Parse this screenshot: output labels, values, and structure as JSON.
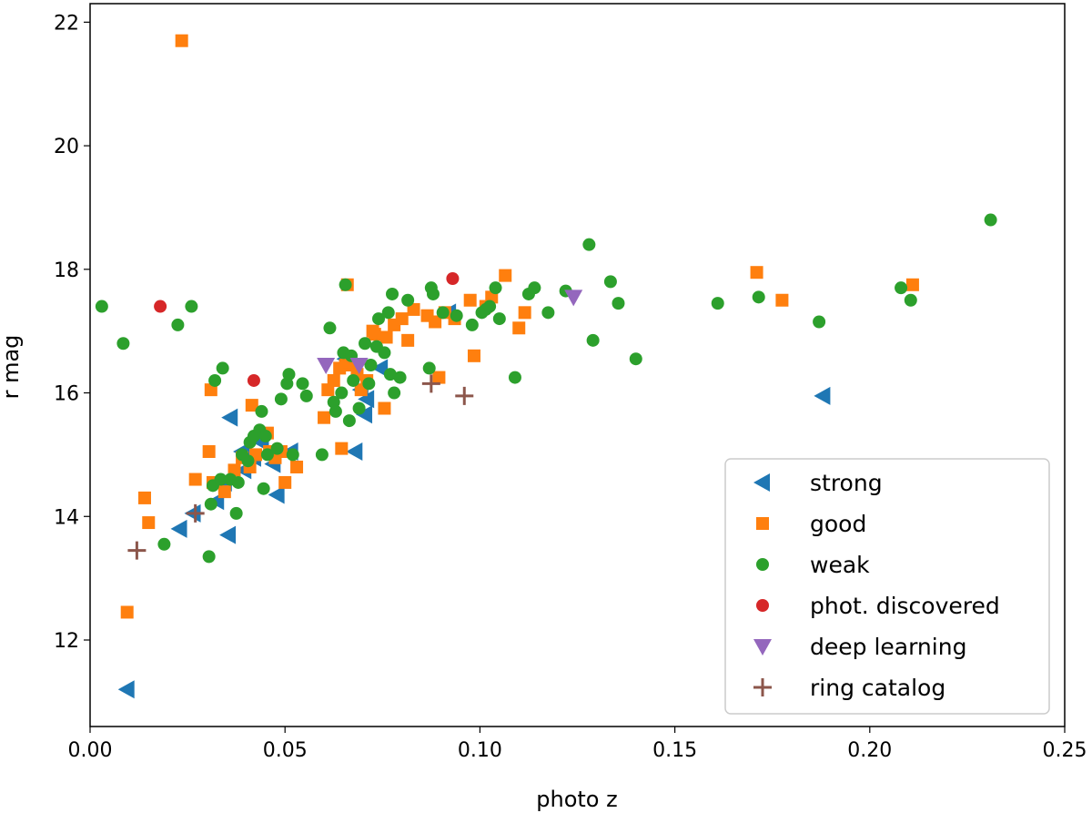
{
  "chart_data": {
    "type": "scatter",
    "title": "",
    "xlabel": "photo z",
    "ylabel": "r mag",
    "xlim": [
      0.0,
      0.25
    ],
    "ylim": [
      10.6,
      22.3
    ],
    "xticks": [
      0.0,
      0.05,
      0.1,
      0.15,
      0.2,
      0.25
    ],
    "xtick_labels": [
      "0.00",
      "0.05",
      "0.10",
      "0.15",
      "0.20",
      "0.25"
    ],
    "yticks": [
      12,
      14,
      16,
      18,
      20,
      22
    ],
    "ytick_labels": [
      "12",
      "14",
      "16",
      "18",
      "20",
      "22"
    ],
    "legend_position": "lower-right",
    "series": [
      {
        "name": "strong",
        "marker": "triangle-left",
        "color": "#1f77b4",
        "points": [
          [
            0.0095,
            11.2
          ],
          [
            0.023,
            13.8
          ],
          [
            0.0265,
            14.05
          ],
          [
            0.0325,
            14.25
          ],
          [
            0.0355,
            13.7
          ],
          [
            0.0345,
            14.55
          ],
          [
            0.036,
            15.6
          ],
          [
            0.039,
            15.05
          ],
          [
            0.0395,
            14.75
          ],
          [
            0.042,
            14.95
          ],
          [
            0.044,
            15.2
          ],
          [
            0.047,
            14.85
          ],
          [
            0.048,
            14.35
          ],
          [
            0.0515,
            15.05
          ],
          [
            0.0655,
            16.55
          ],
          [
            0.068,
            15.05
          ],
          [
            0.0695,
            16.05
          ],
          [
            0.0705,
            15.65
          ],
          [
            0.071,
            15.9
          ],
          [
            0.0745,
            16.4
          ],
          [
            0.092,
            17.3
          ],
          [
            0.188,
            15.95
          ]
        ]
      },
      {
        "name": "good",
        "marker": "square",
        "color": "#ff7f0e",
        "points": [
          [
            0.0235,
            21.7
          ],
          [
            0.0095,
            12.45
          ],
          [
            0.014,
            14.3
          ],
          [
            0.015,
            13.9
          ],
          [
            0.027,
            14.6
          ],
          [
            0.0305,
            15.05
          ],
          [
            0.031,
            16.05
          ],
          [
            0.0315,
            14.55
          ],
          [
            0.0345,
            14.4
          ],
          [
            0.037,
            14.75
          ],
          [
            0.039,
            14.95
          ],
          [
            0.0415,
            15.8
          ],
          [
            0.041,
            14.8
          ],
          [
            0.0425,
            15.0
          ],
          [
            0.0455,
            15.35
          ],
          [
            0.046,
            15.05
          ],
          [
            0.0475,
            14.95
          ],
          [
            0.049,
            15.05
          ],
          [
            0.05,
            14.55
          ],
          [
            0.053,
            14.8
          ],
          [
            0.06,
            15.6
          ],
          [
            0.061,
            16.05
          ],
          [
            0.0625,
            16.2
          ],
          [
            0.064,
            16.4
          ],
          [
            0.0645,
            15.1
          ],
          [
            0.0655,
            16.45
          ],
          [
            0.066,
            17.75
          ],
          [
            0.0665,
            16.5
          ],
          [
            0.0685,
            16.3
          ],
          [
            0.0695,
            16.05
          ],
          [
            0.071,
            16.2
          ],
          [
            0.0725,
            17.0
          ],
          [
            0.073,
            16.95
          ],
          [
            0.0755,
            15.75
          ],
          [
            0.076,
            16.9
          ],
          [
            0.078,
            17.1
          ],
          [
            0.08,
            17.2
          ],
          [
            0.0815,
            16.85
          ],
          [
            0.083,
            17.35
          ],
          [
            0.0865,
            17.25
          ],
          [
            0.0885,
            17.15
          ],
          [
            0.0895,
            16.25
          ],
          [
            0.091,
            17.3
          ],
          [
            0.0935,
            17.2
          ],
          [
            0.0975,
            17.5
          ],
          [
            0.0985,
            16.6
          ],
          [
            0.1015,
            17.4
          ],
          [
            0.103,
            17.55
          ],
          [
            0.1065,
            17.9
          ],
          [
            0.11,
            17.05
          ],
          [
            0.1115,
            17.3
          ],
          [
            0.171,
            17.95
          ],
          [
            0.1775,
            17.5
          ],
          [
            0.211,
            17.75
          ]
        ]
      },
      {
        "name": "weak",
        "marker": "circle",
        "color": "#2ca02c",
        "points": [
          [
            0.003,
            17.4
          ],
          [
            0.0085,
            16.8
          ],
          [
            0.019,
            13.55
          ],
          [
            0.0225,
            17.1
          ],
          [
            0.026,
            17.4
          ],
          [
            0.0305,
            13.35
          ],
          [
            0.031,
            14.2
          ],
          [
            0.0315,
            14.5
          ],
          [
            0.032,
            16.2
          ],
          [
            0.0335,
            14.6
          ],
          [
            0.034,
            16.4
          ],
          [
            0.036,
            14.6
          ],
          [
            0.0375,
            14.05
          ],
          [
            0.038,
            14.55
          ],
          [
            0.039,
            15.0
          ],
          [
            0.0405,
            14.9
          ],
          [
            0.041,
            15.2
          ],
          [
            0.042,
            15.3
          ],
          [
            0.0435,
            15.4
          ],
          [
            0.044,
            15.7
          ],
          [
            0.0445,
            14.45
          ],
          [
            0.045,
            15.3
          ],
          [
            0.0455,
            15.0
          ],
          [
            0.048,
            15.1
          ],
          [
            0.049,
            15.9
          ],
          [
            0.0505,
            16.15
          ],
          [
            0.051,
            16.3
          ],
          [
            0.052,
            15.0
          ],
          [
            0.0545,
            16.15
          ],
          [
            0.0555,
            15.95
          ],
          [
            0.0595,
            15.0
          ],
          [
            0.0615,
            17.05
          ],
          [
            0.0625,
            15.85
          ],
          [
            0.063,
            15.7
          ],
          [
            0.0645,
            16.0
          ],
          [
            0.065,
            16.65
          ],
          [
            0.0655,
            17.75
          ],
          [
            0.0665,
            15.55
          ],
          [
            0.067,
            16.6
          ],
          [
            0.0675,
            16.2
          ],
          [
            0.069,
            15.75
          ],
          [
            0.0705,
            16.8
          ],
          [
            0.0715,
            16.15
          ],
          [
            0.072,
            16.45
          ],
          [
            0.0735,
            16.75
          ],
          [
            0.074,
            17.2
          ],
          [
            0.0755,
            16.65
          ],
          [
            0.0765,
            17.3
          ],
          [
            0.077,
            16.3
          ],
          [
            0.0775,
            17.6
          ],
          [
            0.078,
            16.0
          ],
          [
            0.0795,
            16.25
          ],
          [
            0.0815,
            17.5
          ],
          [
            0.087,
            16.4
          ],
          [
            0.0875,
            17.7
          ],
          [
            0.088,
            17.6
          ],
          [
            0.0905,
            17.3
          ],
          [
            0.094,
            17.25
          ],
          [
            0.098,
            17.1
          ],
          [
            0.1005,
            17.3
          ],
          [
            0.1015,
            17.35
          ],
          [
            0.1025,
            17.4
          ],
          [
            0.104,
            17.7
          ],
          [
            0.105,
            17.2
          ],
          [
            0.109,
            16.25
          ],
          [
            0.1125,
            17.6
          ],
          [
            0.114,
            17.7
          ],
          [
            0.1175,
            17.3
          ],
          [
            0.122,
            17.65
          ],
          [
            0.128,
            18.4
          ],
          [
            0.129,
            16.85
          ],
          [
            0.1335,
            17.8
          ],
          [
            0.1355,
            17.45
          ],
          [
            0.14,
            16.55
          ],
          [
            0.161,
            17.45
          ],
          [
            0.1715,
            17.55
          ],
          [
            0.187,
            17.15
          ],
          [
            0.208,
            17.7
          ],
          [
            0.2105,
            17.5
          ],
          [
            0.231,
            18.8
          ]
        ]
      },
      {
        "name": "phot. discovered",
        "marker": "circle",
        "color": "#d62728",
        "points": [
          [
            0.018,
            17.4
          ],
          [
            0.042,
            16.2
          ],
          [
            0.093,
            17.85
          ]
        ]
      },
      {
        "name": "deep learning",
        "marker": "triangle-down",
        "color": "#9467bd",
        "points": [
          [
            0.0605,
            16.45
          ],
          [
            0.069,
            16.45
          ],
          [
            0.124,
            17.55
          ]
        ]
      },
      {
        "name": "ring catalog",
        "marker": "plus",
        "color": "#8c564b",
        "points": [
          [
            0.012,
            13.45
          ],
          [
            0.027,
            14.05
          ],
          [
            0.0875,
            16.15
          ],
          [
            0.096,
            15.95
          ]
        ]
      }
    ]
  }
}
